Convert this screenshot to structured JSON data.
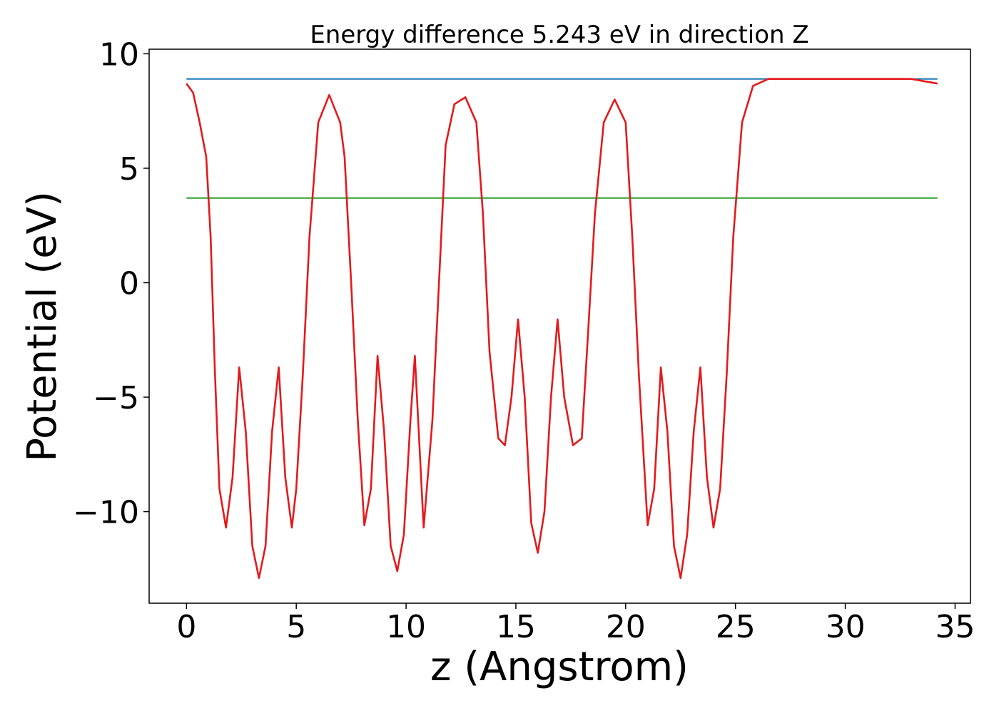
{
  "chart_data": {
    "type": "line",
    "title": "Energy difference 5.243 eV in direction Z",
    "xlabel": "z (Angstrom)",
    "ylabel": "Potential (eV)",
    "xlim": [
      -1.7,
      35.7
    ],
    "ylim": [
      -14.0,
      10.2
    ],
    "xticks": [
      0,
      5,
      10,
      15,
      20,
      25,
      30,
      35
    ],
    "xtick_labels": [
      "0",
      "5",
      "10",
      "15",
      "20",
      "25",
      "30",
      "35"
    ],
    "yticks": [
      10,
      5,
      0,
      -5,
      -10
    ],
    "ytick_labels": [
      "10",
      "5",
      "0",
      "−5",
      "−10"
    ],
    "grid": false,
    "series": [
      {
        "color": "#1f77b4",
        "x": [
          0,
          34.2
        ],
        "y": [
          8.9,
          8.9
        ]
      },
      {
        "color": "#2ca02c",
        "x": [
          0,
          34.2
        ],
        "y": [
          3.7,
          3.7
        ]
      },
      {
        "color": "#e31a1c",
        "x": [
          0,
          0.3,
          0.6,
          0.9,
          1.1,
          1.3,
          1.5,
          1.8,
          2.1,
          2.4,
          2.7,
          3.0,
          3.3,
          3.6,
          3.9,
          4.2,
          4.5,
          4.8,
          5.0,
          5.3,
          5.6,
          6.0,
          6.5,
          7.0,
          7.2,
          7.5,
          7.8,
          8.1,
          8.4,
          8.7,
          9.0,
          9.3,
          9.6,
          9.9,
          10.2,
          10.4,
          10.8,
          11.2,
          11.5,
          11.8,
          12.2,
          12.7,
          13.2,
          13.5,
          13.8,
          14.2,
          14.5,
          14.8,
          15.1,
          15.4,
          15.7,
          16.0,
          16.3,
          16.6,
          16.9,
          17.2,
          17.6,
          18.0,
          18.3,
          18.6,
          19.0,
          19.5,
          20.0,
          20.3,
          20.6,
          21.0,
          21.3,
          21.6,
          21.9,
          22.2,
          22.5,
          22.8,
          23.1,
          23.4,
          23.7,
          24.0,
          24.3,
          24.6,
          24.9,
          25.3,
          25.8,
          26.5,
          27.5,
          30.0,
          33.0,
          34.2
        ],
        "y": [
          8.7,
          8.3,
          7.0,
          5.5,
          2.0,
          -4.0,
          -9.0,
          -10.7,
          -8.5,
          -3.7,
          -6.5,
          -11.5,
          -12.9,
          -11.5,
          -6.5,
          -3.7,
          -8.5,
          -10.7,
          -9.0,
          -4.0,
          2.0,
          7.0,
          8.2,
          7.0,
          5.5,
          0.0,
          -6.0,
          -10.6,
          -9.0,
          -3.2,
          -6.5,
          -11.5,
          -12.6,
          -11.0,
          -6.0,
          -3.2,
          -10.7,
          -6.0,
          0.0,
          6.0,
          7.8,
          8.1,
          7.0,
          3.0,
          -3.0,
          -6.8,
          -7.1,
          -5.0,
          -1.6,
          -5.0,
          -10.5,
          -11.8,
          -10.0,
          -5.0,
          -1.6,
          -5.0,
          -7.1,
          -6.8,
          -2.0,
          3.0,
          7.0,
          8.0,
          7.0,
          2.0,
          -4.0,
          -10.6,
          -9.0,
          -3.7,
          -6.5,
          -11.5,
          -12.9,
          -11.0,
          -6.5,
          -3.7,
          -8.5,
          -10.7,
          -9.0,
          -4.0,
          2.0,
          7.0,
          8.6,
          8.9,
          8.9,
          8.9,
          8.9,
          8.7
        ]
      }
    ]
  }
}
